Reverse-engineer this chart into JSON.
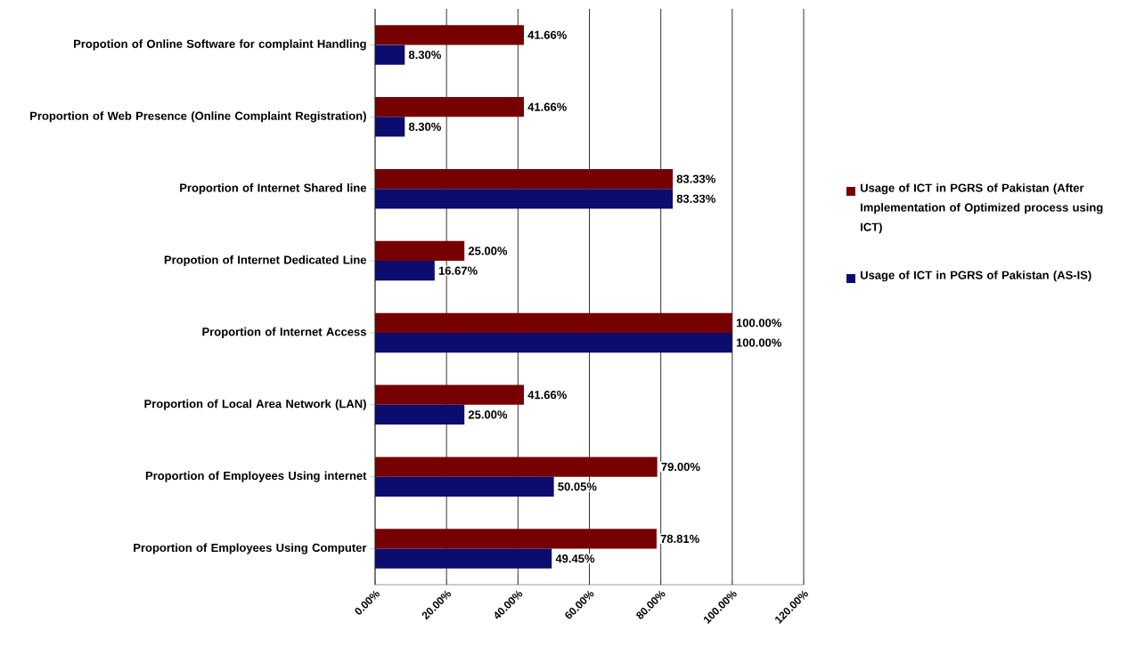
{
  "chart_data": {
    "type": "bar",
    "orientation": "horizontal",
    "categories": [
      "Propotion  of Online Software for complaint  Handling",
      "Proportion of Web Presence (Online Complaint Registration)",
      "Proportion of Internet Shared line",
      "Propotion of Internet Dedicated Line",
      "Proportion of Internet Access",
      "Proportion of Local Area Network (LAN)",
      "Proportion of Employees Using internet",
      "Proportion of Employees Using Computer"
    ],
    "series": [
      {
        "name": "Usage of ICT in PGRS of Pakistan (After Implementation of Optimized process using  ICT)",
        "color": "#760000",
        "values": [
          41.66,
          41.66,
          83.33,
          25.0,
          100.0,
          41.66,
          79.0,
          78.81
        ],
        "value_labels": [
          "41.66%",
          "41.66%",
          "83.33%",
          "25.00%",
          "100.00%",
          "41.66%",
          "79.00%",
          "78.81%"
        ]
      },
      {
        "name": "Usage of ICT in PGRS of Pakistan (AS-IS)",
        "color": "#0c0c6e",
        "values": [
          8.3,
          8.3,
          83.33,
          16.67,
          100.0,
          25.0,
          50.05,
          49.45
        ],
        "value_labels": [
          "8.30%",
          "8.30%",
          "83.33%",
          "16.67%",
          "100.00%",
          "25.00%",
          "50.05%",
          "49.45%"
        ]
      }
    ],
    "xlim": [
      0,
      120
    ],
    "xticks": [
      {
        "value": 0,
        "label": "0.00%"
      },
      {
        "value": 20,
        "label": "20.00%"
      },
      {
        "value": 40,
        "label": "40.00%"
      },
      {
        "value": 60,
        "label": "60.00%"
      },
      {
        "value": 80,
        "label": "80.00%"
      },
      {
        "value": 100,
        "label": "100.00%"
      },
      {
        "value": 120,
        "label": "120.00%"
      }
    ],
    "grid": "x",
    "legend": "right"
  }
}
